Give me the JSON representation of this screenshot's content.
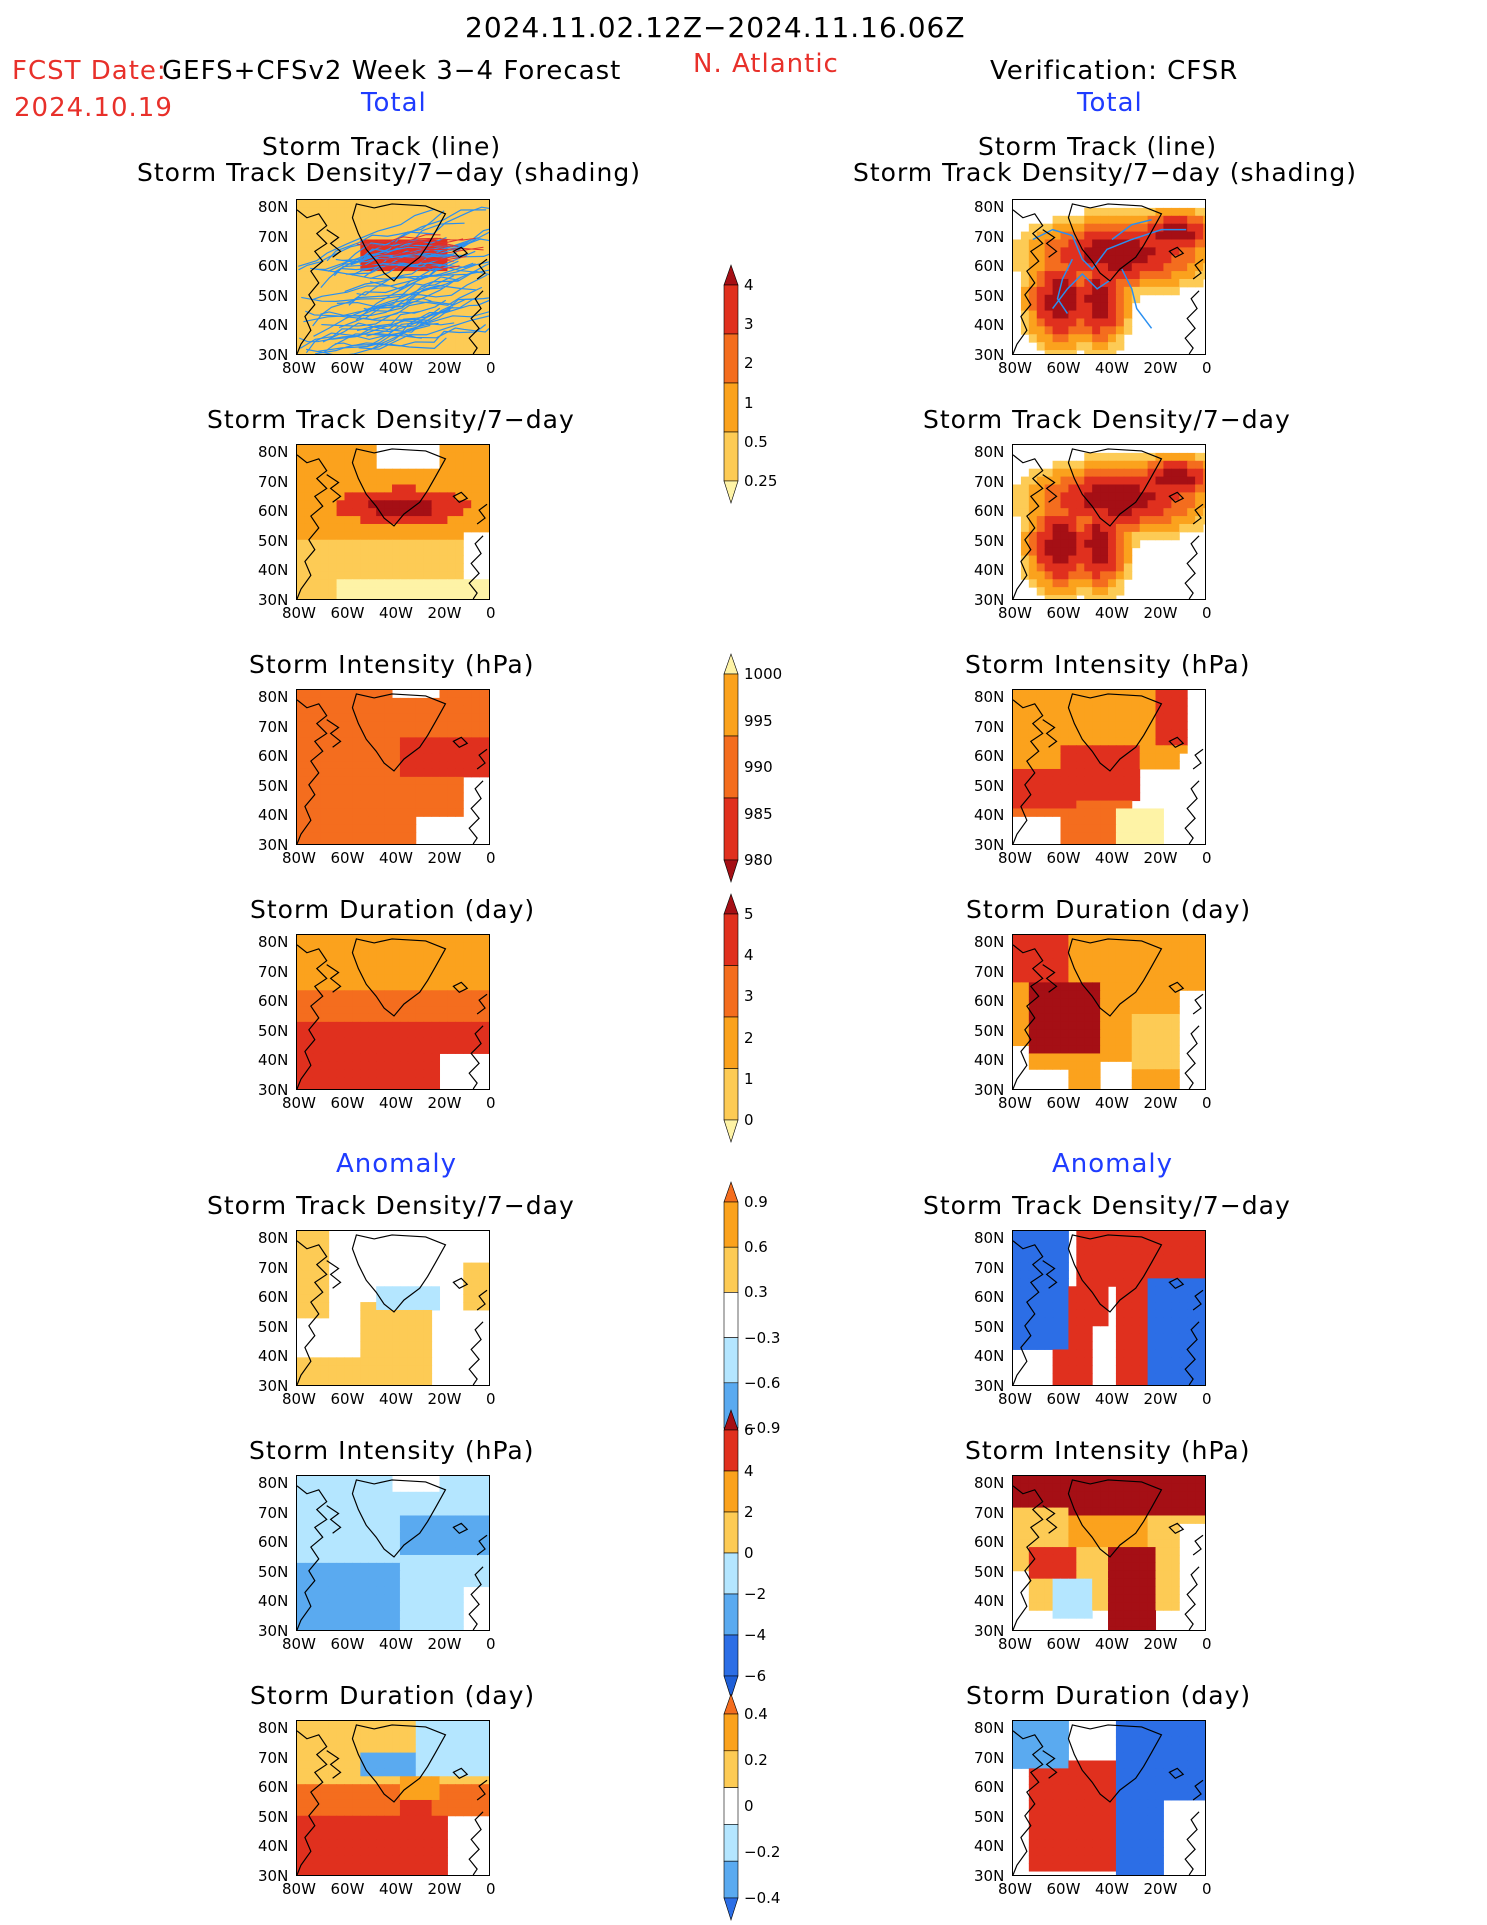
{
  "header": {
    "date_range": "2024.11.02.12Z−2024.11.16.06Z",
    "fcst_label": "FCST Date:",
    "forecast_title": "GEFS+CFSv2 Week 3−4 Forecast",
    "fcst_date": "2024.10.19",
    "region": "N. Atlantic",
    "verification": "Verification: CFSR",
    "total_left": "Total",
    "total_right": "Total",
    "anomaly_left": "Anomaly",
    "anomaly_right": "Anomaly"
  },
  "titles": {
    "storm_track_line": "Storm Track (line)",
    "storm_track_density_shading": "Storm Track Density/7−day (shading)",
    "storm_track_density": "Storm Track Density/7−day",
    "storm_intensity": "Storm Intensity (hPa)",
    "storm_duration": "Storm Duration (day)"
  },
  "axes": {
    "lat": [
      "80N",
      "70N",
      "60N",
      "50N",
      "40N",
      "30N"
    ],
    "lon": [
      "80W",
      "60W",
      "40W",
      "20W",
      "0"
    ]
  },
  "colorbars": {
    "density_total": [
      "4",
      "3",
      "2",
      "1",
      "0.5",
      "0.25"
    ],
    "intensity_total": [
      "1000",
      "995",
      "990",
      "985",
      "980"
    ],
    "duration_total": [
      "5",
      "4",
      "3",
      "2",
      "1",
      "0"
    ],
    "density_anom": [
      "0.9",
      "0.6",
      "0.3",
      "−0.3",
      "−0.6",
      "−0.9"
    ],
    "intensity_anom": [
      "6",
      "4",
      "2",
      "0",
      "−2",
      "−4",
      "−6"
    ],
    "duration_anom": [
      "0.4",
      "0.2",
      "0",
      "−0.2",
      "−0.4"
    ]
  },
  "colors": {
    "dark_red": "#a50f15",
    "red": "#e0301e",
    "orange_red": "#f46d1e",
    "orange": "#fba21d",
    "light_orange": "#fdcb55",
    "yellow": "#fef3a6",
    "light_blue": "#b4e6ff",
    "mid_blue": "#5aaaf0",
    "blue": "#2c6ee6",
    "track_line": "#2a8ff0"
  }
}
